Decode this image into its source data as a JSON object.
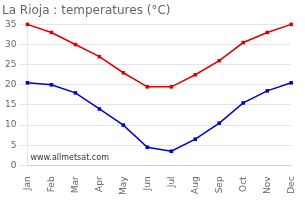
{
  "chart_data": {
    "type": "line",
    "title": "La Rioja : temperatures (°C)",
    "categories": [
      "Jan",
      "Feb",
      "Mar",
      "Apr",
      "May",
      "Jun",
      "Jul",
      "Aug",
      "Sep",
      "Oct",
      "Nov",
      "Dec"
    ],
    "series": [
      {
        "color": "#dd0000",
        "values": [
          35,
          33,
          30,
          27,
          23,
          19.5,
          19.5,
          22.5,
          26,
          30.5,
          33,
          35
        ]
      },
      {
        "color": "#0000cc",
        "values": [
          20.5,
          20,
          18,
          14,
          10,
          4.5,
          3.5,
          6.5,
          10.5,
          15.5,
          18.5,
          20.5
        ]
      }
    ],
    "ylim": [
      0,
      35
    ],
    "yticks": [
      0,
      5,
      10,
      15,
      20,
      25,
      30,
      35
    ],
    "grid": true,
    "marker": "square",
    "annotations": [
      "www.allmetsat.com"
    ]
  }
}
